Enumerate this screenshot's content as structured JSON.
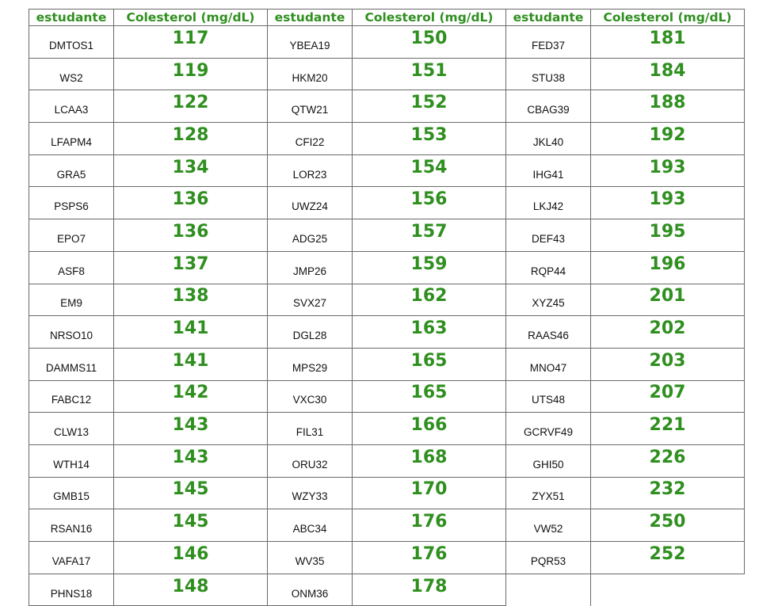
{
  "headers": [
    "estudante",
    "Colesterol (mg/dL)",
    "estudante",
    "Colesterol (mg/dL)",
    "estudante",
    "Colesterol (mg/dL)"
  ],
  "rows": [
    [
      "DMTOS1",
      "117",
      "YBEA19",
      "150",
      "FED37",
      "181"
    ],
    [
      "WS2",
      "119",
      "HKM20",
      "151",
      "STU38",
      "184"
    ],
    [
      "LCAA3",
      "122",
      "QTW21",
      "152",
      "CBAG39",
      "188"
    ],
    [
      "LFAPM4",
      "128",
      "CFI22",
      "153",
      "JKL40",
      "192"
    ],
    [
      "GRA5",
      "134",
      "LOR23",
      "154",
      "IHG41",
      "193"
    ],
    [
      "PSPS6",
      "136",
      "UWZ24",
      "156",
      "LKJ42",
      "193"
    ],
    [
      "EPO7",
      "136",
      "ADG25",
      "157",
      "DEF43",
      "195"
    ],
    [
      "ASF8",
      "137",
      "JMP26",
      "159",
      "RQP44",
      "196"
    ],
    [
      "EM9",
      "138",
      "SVX27",
      "162",
      "XYZ45",
      "201"
    ],
    [
      "NRSO10",
      "141",
      "DGL28",
      "163",
      "RAAS46",
      "202"
    ],
    [
      "DAMMS11",
      "141",
      "MPS29",
      "165",
      "MNO47",
      "203"
    ],
    [
      "FABC12",
      "142",
      "VXC30",
      "165",
      "UTS48",
      "207"
    ],
    [
      "CLW13",
      "143",
      "FIL31",
      "166",
      "GCRVF49",
      "221"
    ],
    [
      "WTH14",
      "143",
      "ORU32",
      "168",
      "GHI50",
      "226"
    ],
    [
      "GMB15",
      "145",
      "WZY33",
      "170",
      "ZYX51",
      "232"
    ],
    [
      "RSAN16",
      "145",
      "ABC34",
      "176",
      "VW52",
      "250"
    ],
    [
      "VAFA17",
      "146",
      "WV35",
      "176",
      "PQR53",
      "252"
    ],
    [
      "PHNS18",
      "148",
      "ONM36",
      "178",
      "",
      ""
    ]
  ]
}
